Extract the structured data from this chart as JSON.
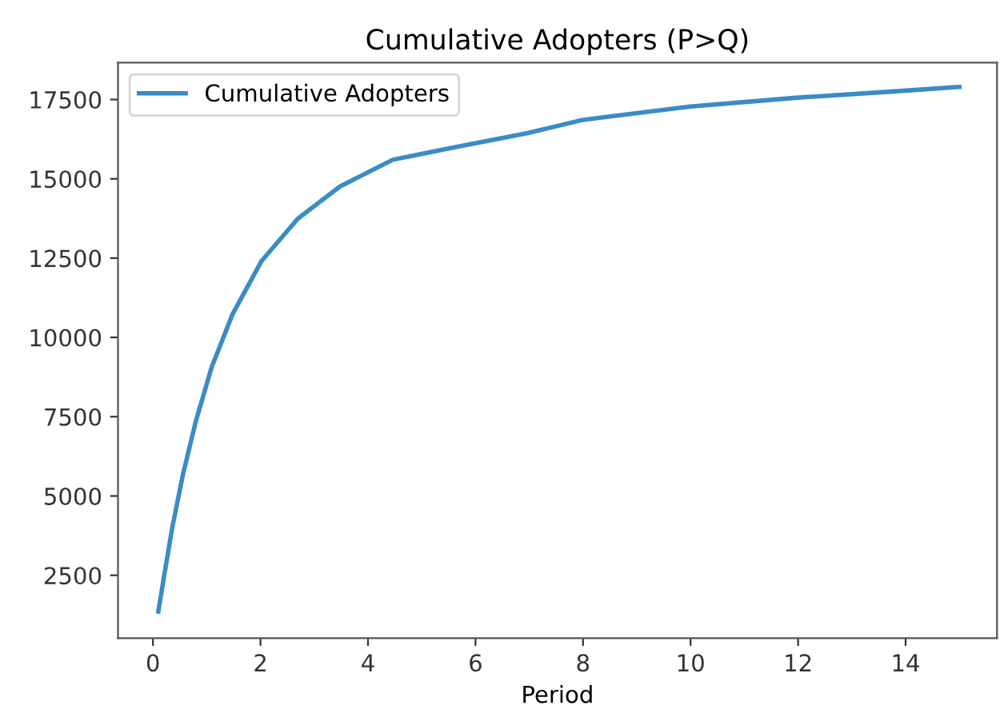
{
  "chart_data": {
    "type": "line",
    "title": "Cumulative Adopters (P>Q)",
    "xlabel": "Period",
    "x": [
      0.1,
      0.21,
      0.36,
      0.56,
      0.8,
      1.09,
      1.48,
      2.02,
      2.7,
      3.48,
      4.46,
      5.63,
      6.97,
      8,
      10,
      12,
      14,
      15
    ],
    "series": [
      {
        "name": "Cumulative Adopters",
        "color": "#3a8cc4",
        "values": [
          1360,
          2500,
          4010,
          5690,
          7370,
          9050,
          10730,
          12410,
          13750,
          14760,
          15600,
          16000,
          16440,
          16860,
          17280,
          17560,
          17780,
          17900
        ]
      }
    ],
    "xlim": [
      -0.65,
      15.7
    ],
    "xticks": [
      0,
      2,
      4,
      6,
      8,
      10,
      12,
      14
    ],
    "ylim": [
      520,
      18660
    ],
    "yticks": [
      2500,
      5000,
      7500,
      10000,
      12500,
      15000,
      17500
    ],
    "legend": "top left",
    "grid": false
  }
}
